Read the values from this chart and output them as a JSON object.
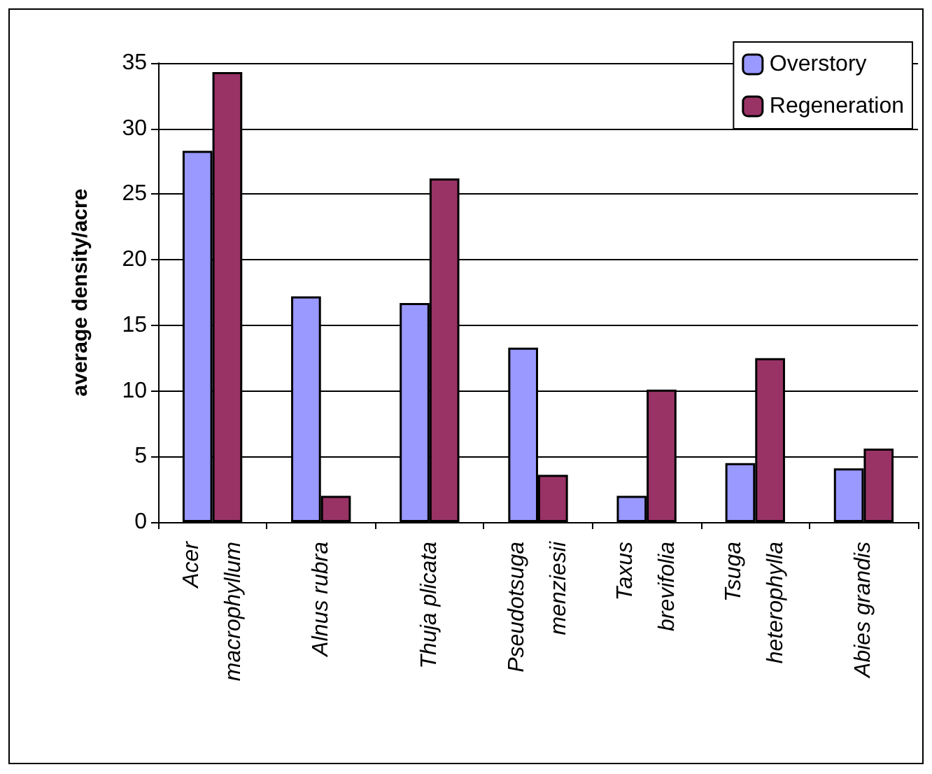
{
  "chart_data": {
    "type": "bar",
    "ylabel": "average density/acre",
    "categories": [
      "Acer\nmacrophyllum",
      "Alnus rubra",
      "Thuja plicata",
      "Pseudotsuga\nmenziesii",
      "Taxus\nbrevifolia",
      "Tsuga\nheterophylla",
      "Abies grandis"
    ],
    "series": [
      {
        "name": "Overstory",
        "color": "#9999ff",
        "values": [
          28.3,
          17.2,
          16.7,
          13.3,
          2.0,
          4.5,
          4.1
        ]
      },
      {
        "name": "Regeneration",
        "color": "#993366",
        "values": [
          34.3,
          2.0,
          26.2,
          3.6,
          10.1,
          12.5,
          5.6
        ]
      }
    ],
    "ylim": [
      0,
      35
    ],
    "yticks": [
      0,
      5,
      10,
      15,
      20,
      25,
      30,
      35
    ],
    "grid": "y",
    "legend": "top right"
  }
}
